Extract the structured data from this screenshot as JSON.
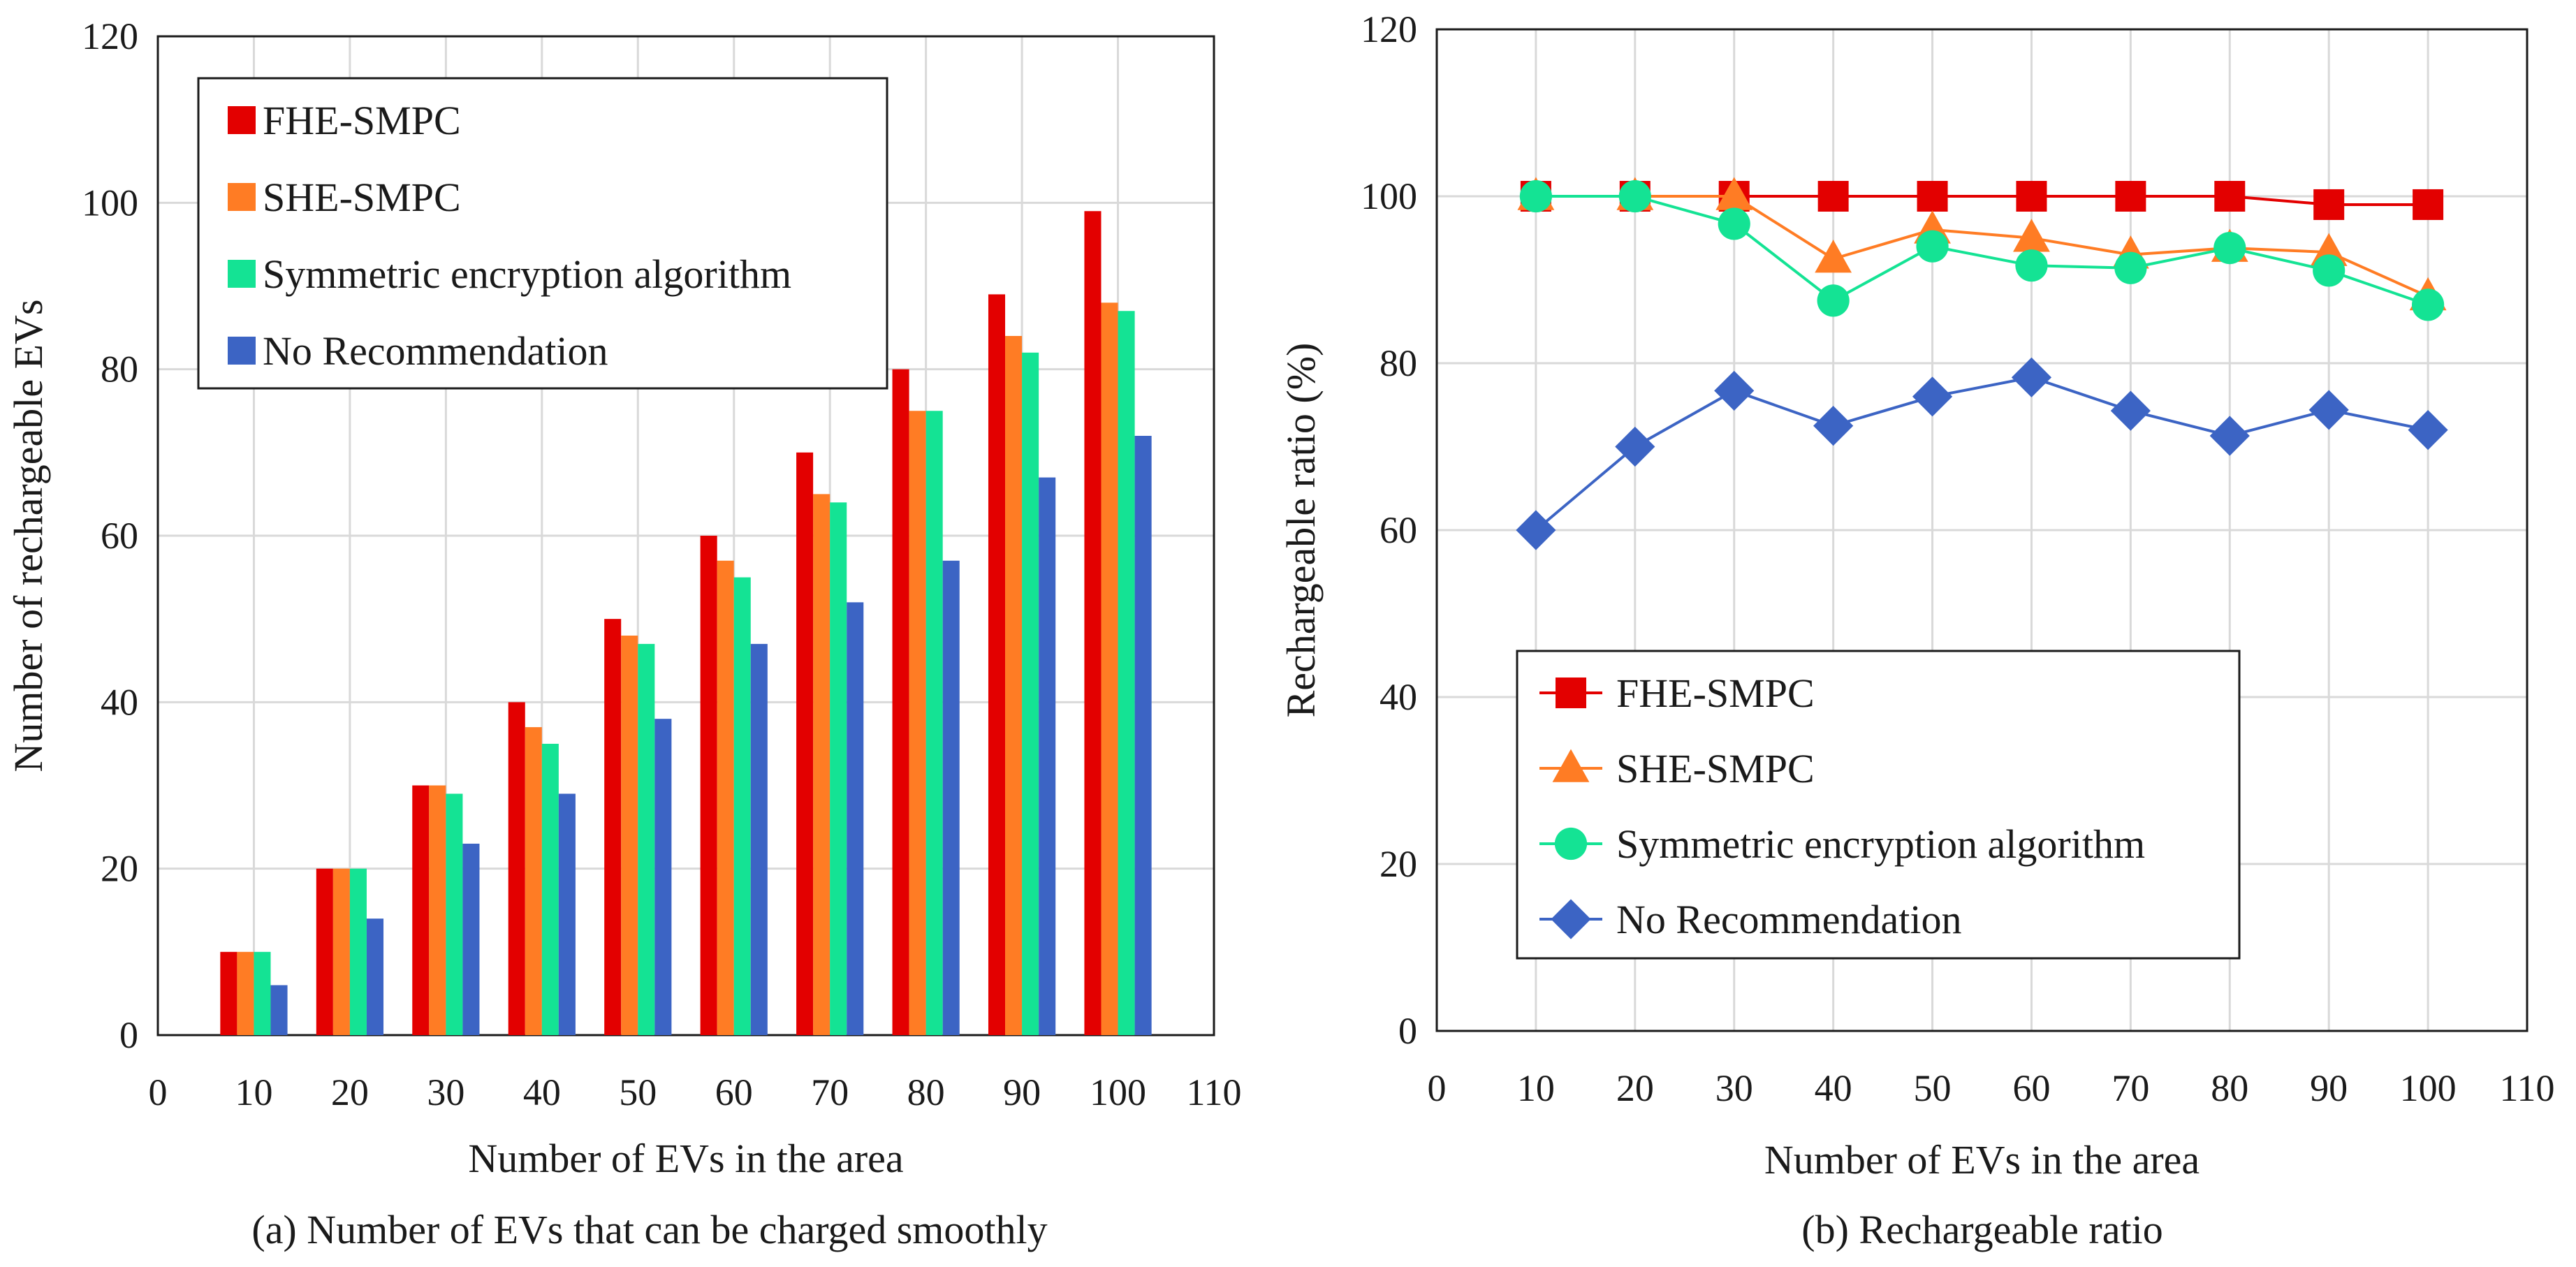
{
  "chart_data": [
    {
      "type": "bar",
      "caption": "(a) Number of EVs that can be charged smoothly",
      "xlabel": "Number of EVs in the area",
      "ylabel": "Number of rechargeable EVs",
      "xlim": [
        0,
        110
      ],
      "ylim": [
        0,
        120
      ],
      "xticks": [
        "0",
        "10",
        "20",
        "30",
        "40",
        "50",
        "60",
        "70",
        "80",
        "90",
        "100",
        "110"
      ],
      "yticks": [
        "0",
        "20",
        "40",
        "60",
        "80",
        "100",
        "120"
      ],
      "grid": true,
      "legend_position": "top-left",
      "x": [
        10,
        20,
        30,
        40,
        50,
        60,
        70,
        80,
        90,
        100
      ],
      "series": [
        {
          "name": "FHE-SMPC",
          "color": "#e30000",
          "values": [
            10,
            20,
            30,
            40,
            50,
            60,
            70,
            80,
            89,
            99
          ]
        },
        {
          "name": "SHE-SMPC",
          "color": "#ff7c24",
          "values": [
            10,
            20,
            30,
            37,
            48,
            57,
            65,
            75,
            84,
            88
          ]
        },
        {
          "name": "Symmetric encryption algorithm",
          "color": "#14e394",
          "values": [
            10,
            20,
            29,
            35,
            47,
            55,
            64,
            75,
            82,
            87
          ]
        },
        {
          "name": "No Recommendation",
          "color": "#3c64c4",
          "values": [
            6,
            14,
            23,
            29,
            38,
            47,
            52,
            57,
            67,
            72
          ]
        }
      ]
    },
    {
      "type": "line",
      "caption": "(b) Rechargeable ratio",
      "xlabel": "Number of EVs in the area",
      "ylabel": "Rechargeable ratio (%)",
      "xlim": [
        0,
        110
      ],
      "ylim": [
        0,
        120
      ],
      "xticks": [
        "0",
        "10",
        "20",
        "30",
        "40",
        "50",
        "60",
        "70",
        "80",
        "90",
        "100",
        "110"
      ],
      "yticks": [
        "0",
        "20",
        "40",
        "60",
        "80",
        "100",
        "120"
      ],
      "grid": true,
      "legend_position": "bottom-left",
      "x": [
        10,
        20,
        30,
        40,
        50,
        60,
        70,
        80,
        90,
        100
      ],
      "series": [
        {
          "name": "FHE-SMPC",
          "color": "#e30000",
          "marker": "square",
          "values": [
            100,
            100,
            100,
            100,
            100,
            100,
            100,
            100,
            99,
            99
          ]
        },
        {
          "name": "SHE-SMPC",
          "color": "#ff7c24",
          "marker": "triangle",
          "values": [
            100,
            100,
            100,
            92.5,
            96,
            95,
            93,
            93.8,
            93.3,
            88
          ]
        },
        {
          "name": "Symmetric encryption algorithm",
          "color": "#14e394",
          "marker": "circle",
          "values": [
            100,
            100,
            96.7,
            87.5,
            94,
            91.7,
            91.4,
            93.8,
            91.1,
            87
          ]
        },
        {
          "name": "No Recommendation",
          "color": "#3c64c4",
          "marker": "diamond",
          "values": [
            60,
            70,
            76.7,
            72.5,
            76,
            78.3,
            74.3,
            71.3,
            74.4,
            72
          ]
        }
      ]
    }
  ]
}
